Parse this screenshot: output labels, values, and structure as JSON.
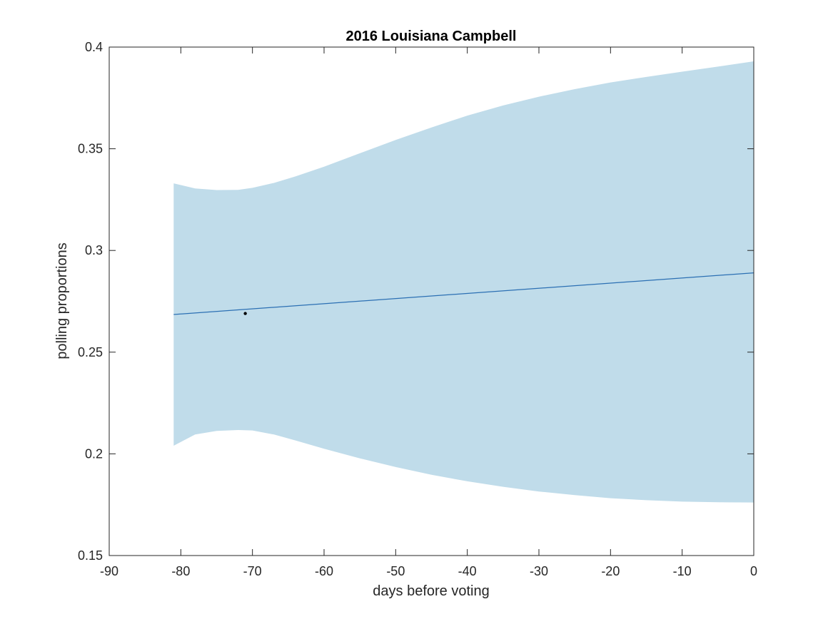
{
  "chart_data": {
    "type": "line",
    "title": "2016 Louisiana Campbell",
    "xlabel": "days before voting",
    "ylabel": "polling proportions",
    "xlim": [
      -90,
      0
    ],
    "ylim": [
      0.15,
      0.4
    ],
    "xticks": [
      -90,
      -80,
      -70,
      -60,
      -50,
      -40,
      -30,
      -20,
      -10,
      0
    ],
    "xtick_labels": [
      "-90",
      "-80",
      "-70",
      "-60",
      "-50",
      "-40",
      "-30",
      "-20",
      "-10",
      "0"
    ],
    "yticks": [
      0.15,
      0.2,
      0.25,
      0.3,
      0.35,
      0.4
    ],
    "ytick_labels": [
      "0.15",
      "0.2",
      "0.25",
      "0.3",
      "0.35",
      "0.4"
    ],
    "grid": false,
    "colors": {
      "band": "#c0dcea",
      "line": "#2b6fb3",
      "point": "#000000",
      "axis": "#262626"
    },
    "band": {
      "x": [
        -81,
        -78,
        -75,
        -72,
        -70,
        -67,
        -64,
        -60,
        -55,
        -50,
        -45,
        -40,
        -35,
        -30,
        -25,
        -20,
        -15,
        -10,
        -5,
        0
      ],
      "upper": [
        0.333,
        0.3305,
        0.3297,
        0.3298,
        0.3308,
        0.3332,
        0.3364,
        0.3412,
        0.3478,
        0.3543,
        0.3605,
        0.3663,
        0.3713,
        0.3756,
        0.3793,
        0.3826,
        0.3853,
        0.3879,
        0.3904,
        0.393
      ],
      "lower": [
        0.204,
        0.2095,
        0.2113,
        0.2117,
        0.2115,
        0.2095,
        0.2066,
        0.2025,
        0.1978,
        0.1935,
        0.1897,
        0.1865,
        0.1838,
        0.1815,
        0.1797,
        0.1782,
        0.1772,
        0.1765,
        0.1762,
        0.1761
      ]
    },
    "series": [
      {
        "x": [
          -81,
          0
        ],
        "values": [
          0.2685,
          0.289
        ]
      }
    ],
    "points": [
      {
        "x": -71,
        "y": 0.269
      }
    ]
  }
}
